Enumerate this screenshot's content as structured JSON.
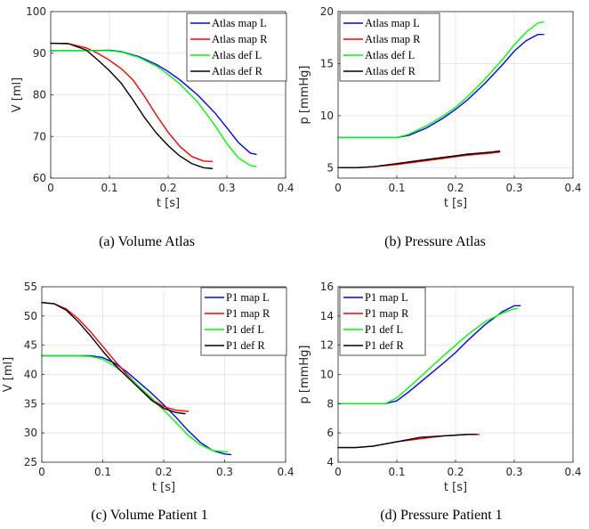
{
  "colors": {
    "blue": "#0000ff",
    "red": "#ff0000",
    "green": "#00ff00",
    "black": "#000000"
  },
  "chart_data": [
    {
      "type": "line",
      "caption": "(a) Volume Atlas",
      "xlabel": "t [s]",
      "ylabel": "V [ml]",
      "xlim": [
        0,
        0.4
      ],
      "ylim": [
        60,
        100
      ],
      "xticks": [
        "0",
        "0.1",
        "0.2",
        "0.3",
        "0.4"
      ],
      "yticks": [
        "60",
        "70",
        "80",
        "90",
        "100"
      ],
      "xtick_values": [
        0,
        0.1,
        0.2,
        0.3,
        0.4
      ],
      "ytick_values": [
        60,
        70,
        80,
        90,
        100
      ],
      "grid": true,
      "legend_position": "top-right",
      "series": [
        {
          "name": "Atlas map L",
          "color": "#0000ff",
          "x": [
            0,
            0.05,
            0.1,
            0.12,
            0.15,
            0.18,
            0.2,
            0.22,
            0.25,
            0.28,
            0.3,
            0.32,
            0.34,
            0.35
          ],
          "y": [
            90.6,
            90.6,
            90.7,
            90.4,
            89.2,
            87.3,
            85.6,
            83.6,
            80.0,
            75.6,
            72.1,
            68.5,
            66.0,
            65.7
          ]
        },
        {
          "name": "Atlas map R",
          "color": "#ff0000",
          "x": [
            0,
            0.03,
            0.06,
            0.08,
            0.1,
            0.12,
            0.14,
            0.16,
            0.18,
            0.2,
            0.22,
            0.24,
            0.26,
            0.275
          ],
          "y": [
            92.4,
            92.3,
            91.3,
            90.0,
            88.3,
            86.3,
            83.6,
            79.6,
            75.1,
            71.0,
            67.6,
            65.2,
            64.1,
            64.0
          ]
        },
        {
          "name": "Atlas def L",
          "color": "#00ff00",
          "x": [
            0,
            0.05,
            0.1,
            0.12,
            0.15,
            0.18,
            0.2,
            0.22,
            0.25,
            0.28,
            0.3,
            0.32,
            0.34,
            0.35
          ],
          "y": [
            90.6,
            90.6,
            90.6,
            90.3,
            89.0,
            86.9,
            84.9,
            82.6,
            78.3,
            72.6,
            68.3,
            64.8,
            63.0,
            62.8
          ]
        },
        {
          "name": "Atlas def R",
          "color": "#000000",
          "x": [
            0,
            0.03,
            0.06,
            0.08,
            0.1,
            0.12,
            0.14,
            0.16,
            0.18,
            0.2,
            0.22,
            0.24,
            0.26,
            0.275
          ],
          "y": [
            92.4,
            92.3,
            90.8,
            88.4,
            85.8,
            82.8,
            78.8,
            74.5,
            70.8,
            67.8,
            65.3,
            63.5,
            62.5,
            62.3
          ]
        }
      ]
    },
    {
      "type": "line",
      "caption": "(b) Pressure Atlas",
      "xlabel": "t [s]",
      "ylabel": "p [mmHg]",
      "xlim": [
        0,
        0.4
      ],
      "ylim": [
        4,
        20
      ],
      "xticks": [
        "0",
        "0.1",
        "0.2",
        "0.3",
        "0.4"
      ],
      "yticks": [
        "5",
        "10",
        "15",
        "20"
      ],
      "xtick_values": [
        0,
        0.1,
        0.2,
        0.3,
        0.4
      ],
      "ytick_values": [
        5,
        10,
        15,
        20
      ],
      "grid": true,
      "legend_position": "top-left",
      "series": [
        {
          "name": "Atlas map L",
          "color": "#0000ff",
          "x": [
            0,
            0.05,
            0.1,
            0.12,
            0.15,
            0.18,
            0.2,
            0.22,
            0.25,
            0.28,
            0.3,
            0.32,
            0.34,
            0.35
          ],
          "y": [
            7.9,
            7.9,
            7.9,
            8.1,
            8.8,
            9.8,
            10.6,
            11.5,
            13.1,
            14.9,
            16.2,
            17.2,
            17.8,
            17.8
          ]
        },
        {
          "name": "Atlas map R",
          "color": "#ff0000",
          "x": [
            0,
            0.03,
            0.06,
            0.1,
            0.14,
            0.18,
            0.22,
            0.26,
            0.275
          ],
          "y": [
            5.0,
            5.0,
            5.1,
            5.3,
            5.6,
            5.9,
            6.2,
            6.4,
            6.5
          ]
        },
        {
          "name": "Atlas def L",
          "color": "#00ff00",
          "x": [
            0,
            0.05,
            0.1,
            0.12,
            0.15,
            0.18,
            0.2,
            0.22,
            0.25,
            0.28,
            0.3,
            0.32,
            0.34,
            0.35
          ],
          "y": [
            7.9,
            7.9,
            7.9,
            8.2,
            9.0,
            10.0,
            10.8,
            11.8,
            13.5,
            15.4,
            16.8,
            18.0,
            18.9,
            19.0
          ]
        },
        {
          "name": "Atlas def R",
          "color": "#000000",
          "x": [
            0,
            0.03,
            0.06,
            0.1,
            0.14,
            0.18,
            0.22,
            0.26,
            0.275
          ],
          "y": [
            5.0,
            5.0,
            5.1,
            5.4,
            5.7,
            6.0,
            6.3,
            6.5,
            6.6
          ]
        }
      ]
    },
    {
      "type": "line",
      "caption": "(c) Volume Patient 1",
      "xlabel": "t [s]",
      "ylabel": "V [ml]",
      "xlim": [
        0,
        0.4
      ],
      "ylim": [
        25,
        55
      ],
      "xticks": [
        "0",
        "0.1",
        "0.2",
        "0.3",
        "0.4"
      ],
      "yticks": [
        "25",
        "30",
        "35",
        "40",
        "45",
        "50",
        "55"
      ],
      "xtick_values": [
        0,
        0.1,
        0.2,
        0.3,
        0.4
      ],
      "ytick_values": [
        25,
        30,
        35,
        40,
        45,
        50,
        55
      ],
      "grid": true,
      "legend_position": "top-right",
      "series": [
        {
          "name": "P1 map L",
          "color": "#0000ff",
          "x": [
            0,
            0.05,
            0.08,
            0.1,
            0.12,
            0.14,
            0.16,
            0.18,
            0.2,
            0.22,
            0.24,
            0.26,
            0.28,
            0.3,
            0.31
          ],
          "y": [
            43.2,
            43.2,
            43.2,
            42.9,
            41.9,
            40.4,
            38.6,
            36.8,
            34.8,
            32.7,
            30.4,
            28.4,
            27.0,
            26.4,
            26.3
          ]
        },
        {
          "name": "P1 map R",
          "color": "#ff0000",
          "x": [
            0,
            0.02,
            0.04,
            0.06,
            0.08,
            0.1,
            0.12,
            0.14,
            0.16,
            0.18,
            0.2,
            0.22,
            0.24
          ],
          "y": [
            52.3,
            52.1,
            51.2,
            49.5,
            47.3,
            44.8,
            42.3,
            40.0,
            37.8,
            35.8,
            34.5,
            33.9,
            33.7
          ]
        },
        {
          "name": "P1 def L",
          "color": "#00ff00",
          "x": [
            0,
            0.05,
            0.08,
            0.1,
            0.12,
            0.14,
            0.16,
            0.18,
            0.2,
            0.22,
            0.24,
            0.26,
            0.28,
            0.3,
            0.305
          ],
          "y": [
            43.2,
            43.2,
            43.1,
            42.6,
            41.4,
            39.8,
            37.9,
            36.0,
            33.9,
            31.8,
            29.6,
            28.0,
            27.0,
            26.8,
            26.8
          ]
        },
        {
          "name": "P1 def R",
          "color": "#000000",
          "x": [
            0,
            0.02,
            0.04,
            0.06,
            0.08,
            0.1,
            0.12,
            0.14,
            0.16,
            0.18,
            0.2,
            0.22,
            0.235
          ],
          "y": [
            52.3,
            52.1,
            51.0,
            49.0,
            46.6,
            44.0,
            41.6,
            39.6,
            37.6,
            35.6,
            34.2,
            33.5,
            33.3
          ]
        }
      ]
    },
    {
      "type": "line",
      "caption": "(d) Pressure Patient 1",
      "xlabel": "t [s]",
      "ylabel": "p [mmHg]",
      "xlim": [
        0,
        0.4
      ],
      "ylim": [
        4,
        16
      ],
      "xticks": [
        "0",
        "0.1",
        "0.2",
        "0.3",
        "0.4"
      ],
      "yticks": [
        "4",
        "6",
        "8",
        "10",
        "12",
        "14",
        "16"
      ],
      "xtick_values": [
        0,
        0.1,
        0.2,
        0.3,
        0.4
      ],
      "ytick_values": [
        4,
        6,
        8,
        10,
        12,
        14,
        16
      ],
      "grid": true,
      "legend_position": "top-left",
      "series": [
        {
          "name": "P1 map L",
          "color": "#0000ff",
          "x": [
            0,
            0.05,
            0.08,
            0.1,
            0.12,
            0.15,
            0.18,
            0.2,
            0.22,
            0.25,
            0.28,
            0.3,
            0.31
          ],
          "y": [
            8.0,
            8.0,
            8.0,
            8.2,
            8.8,
            9.8,
            10.8,
            11.5,
            12.3,
            13.4,
            14.3,
            14.7,
            14.7
          ]
        },
        {
          "name": "P1 map R",
          "color": "#ff0000",
          "x": [
            0,
            0.03,
            0.06,
            0.1,
            0.14,
            0.18,
            0.22,
            0.24
          ],
          "y": [
            5.0,
            5.0,
            5.1,
            5.4,
            5.6,
            5.8,
            5.9,
            5.9
          ]
        },
        {
          "name": "P1 def L",
          "color": "#00ff00",
          "x": [
            0,
            0.05,
            0.08,
            0.1,
            0.12,
            0.15,
            0.18,
            0.2,
            0.22,
            0.25,
            0.28,
            0.3,
            0.305
          ],
          "y": [
            8.0,
            8.0,
            8.0,
            8.4,
            9.1,
            10.2,
            11.3,
            12.0,
            12.7,
            13.6,
            14.2,
            14.5,
            14.5
          ]
        },
        {
          "name": "P1 def R",
          "color": "#000000",
          "x": [
            0,
            0.03,
            0.06,
            0.1,
            0.14,
            0.18,
            0.22,
            0.235
          ],
          "y": [
            5.0,
            5.0,
            5.1,
            5.4,
            5.7,
            5.8,
            5.9,
            5.9
          ]
        }
      ]
    }
  ]
}
